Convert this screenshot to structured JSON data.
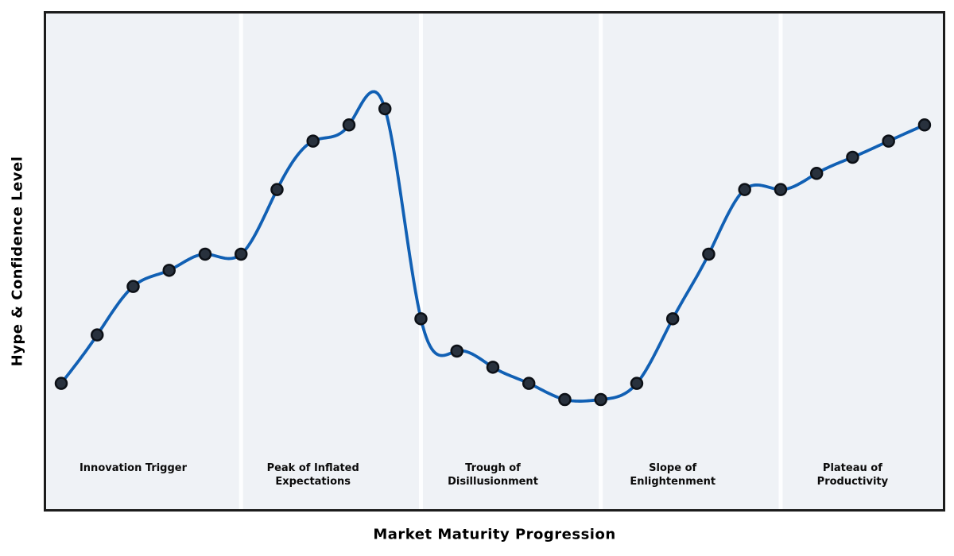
{
  "chart_data": {
    "type": "line",
    "title": "",
    "xlabel": "Market Maturity Progression",
    "ylabel": "Hype & Confidence Level",
    "x": [
      0,
      1,
      2,
      3,
      4,
      5,
      6,
      7,
      8,
      9,
      10,
      11,
      12,
      13,
      14,
      15,
      16,
      17,
      18,
      19,
      20,
      21,
      22,
      23,
      24
    ],
    "values": [
      20,
      29,
      38,
      41,
      44,
      44,
      56,
      65,
      68,
      71,
      32,
      26,
      23,
      20,
      17,
      17,
      20,
      32,
      44,
      56,
      56,
      59,
      62,
      65,
      68
    ],
    "curve_style": "smooth-cubic-spline",
    "grid": false,
    "legend": "none",
    "xlim": [
      -0.42,
      24.51
    ],
    "ylim": [
      -3.36,
      88.7
    ],
    "line_color": "#1160b4",
    "line_width": 3.8,
    "marker_fill": "#28313d",
    "marker_edge": "#0c1016",
    "marker_radius": 7,
    "plot_background": "#eff2f6",
    "figure_background": "#ffffff",
    "border_color": "#1c1c1c",
    "divider_color": "#fdfeff",
    "dividers_x": [
      5,
      10,
      15,
      20
    ],
    "phases": [
      {
        "lines": [
          "Innovation Trigger"
        ],
        "center_x": 2
      },
      {
        "lines": [
          "Peak of Inflated",
          "Expectations"
        ],
        "center_x": 7
      },
      {
        "lines": [
          "Trough of",
          "Disillusionment"
        ],
        "center_x": 12
      },
      {
        "lines": [
          "Slope of",
          "Enlightenment"
        ],
        "center_x": 17
      },
      {
        "lines": [
          "Plateau of",
          "Productivity"
        ],
        "center_x": 22
      }
    ]
  }
}
